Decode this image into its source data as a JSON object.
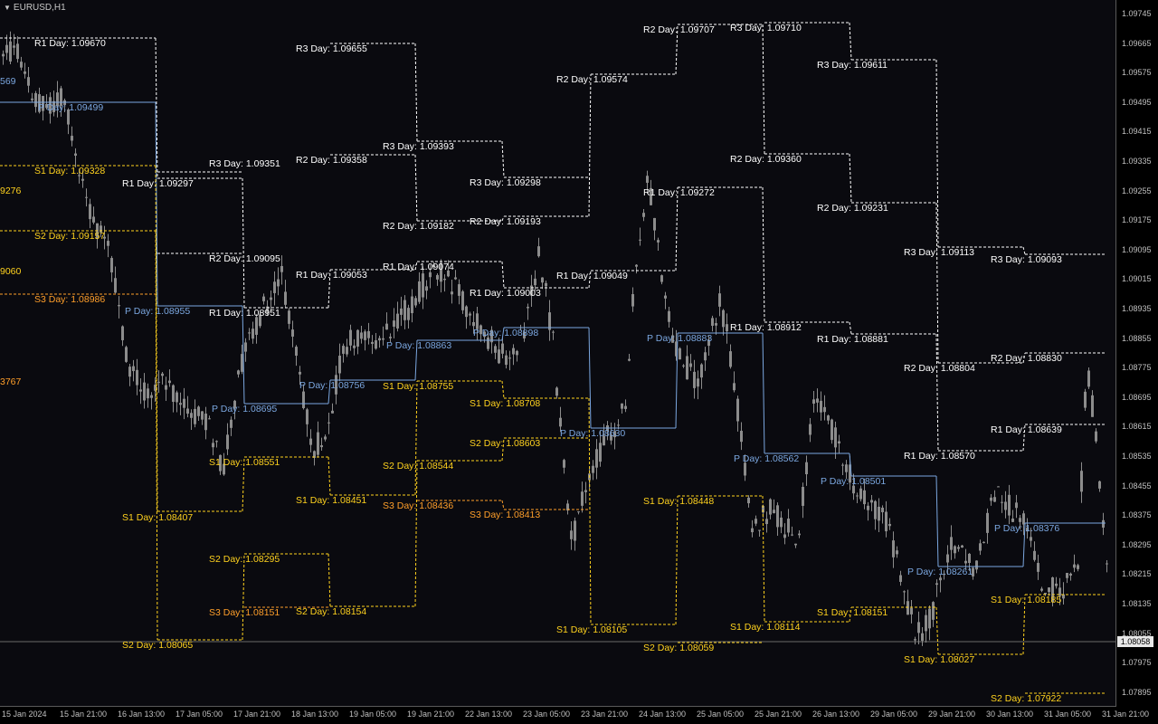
{
  "symbol": "EURUSD,H1",
  "current_price": "1.08058",
  "colors": {
    "background": "#0a0a0f",
    "candles": "#8c8c8c",
    "pivot": "#7ba7e0",
    "resistance": "#ffffff",
    "s1_s2": "#ffd21e",
    "s3": "#ff9f2a"
  },
  "price_axis": [
    "1.09745",
    "1.09665",
    "1.09575",
    "1.09495",
    "1.09415",
    "1.09335",
    "1.09255",
    "1.09175",
    "1.09095",
    "1.09015",
    "1.08935",
    "1.08855",
    "1.08775",
    "1.08695",
    "1.08615",
    "1.08535",
    "1.08455",
    "1.08375",
    "1.08295",
    "1.08215",
    "1.08135",
    "1.08055",
    "1.07975",
    "1.07895"
  ],
  "time_axis": [
    "15 Jan 2024",
    "15 Jan 21:00",
    "16 Jan 13:00",
    "17 Jan 05:00",
    "17 Jan 21:00",
    "18 Jan 13:00",
    "19 Jan 05:00",
    "19 Jan 21:00",
    "22 Jan 13:00",
    "23 Jan 05:00",
    "23 Jan 21:00",
    "24 Jan 13:00",
    "25 Jan 05:00",
    "25 Jan 21:00",
    "26 Jan 13:00",
    "29 Jan 05:00",
    "29 Jan 21:00",
    "30 Jan 13:00",
    "31 Jan 05:00",
    "31 Jan 21:00"
  ],
  "chart_data": {
    "type": "candlestick",
    "symbol": "EURUSD",
    "timeframe": "H1",
    "ylim": [
      1.0789,
      1.0977
    ],
    "current_price": 1.08058,
    "pivot_days": [
      {
        "P": "1.09499",
        "R1": "1.09670",
        "S1": "1.09328",
        "S2": "1.09157",
        "S3": "1.08986"
      },
      {
        "P": "1.08955",
        "R1": "1.09297",
        "R3": "1.09351",
        "R2": "1.09095",
        "S1": "1.08407",
        "S2": "1.08065"
      },
      {
        "P": "1.08695",
        "R1": "1.08951",
        "S1": "1.08551",
        "S2": "1.08295",
        "S3": "1.08151"
      },
      {
        "P": "1.08756",
        "R1": "1.09053",
        "R2": "1.09358",
        "R3": "1.09655",
        "S1": "1.08451",
        "S2": "1.08154"
      },
      {
        "P": "1.08863",
        "R1": "1.09074",
        "R2": "1.09182",
        "R3": "1.09393",
        "S1": "1.08755",
        "S2": "1.08544",
        "S3": "1.08436"
      },
      {
        "P": "1.08898",
        "R1": "1.09003",
        "R2": "1.09193",
        "R3": "1.09298",
        "S1": "1.08708",
        "S2": "1.08603",
        "S3": "1.08413"
      },
      {
        "P": "1.08630",
        "R1": "1.09049",
        "R2": "1.09574",
        "S1": "1.08105"
      },
      {
        "P": "1.08883",
        "R1": "1.09272",
        "R2": "1.09707",
        "S1": "1.08448",
        "S2": "1.08059"
      },
      {
        "P": "1.08562",
        "R1": "1.08912",
        "R2": "1.09360",
        "R3": "1.09710",
        "S1": "1.08114"
      },
      {
        "P": "1.08501",
        "R1": "1.08881",
        "R2": "1.09231",
        "R3": "1.09611",
        "S1": "1.08151"
      },
      {
        "P": "1.08261",
        "R1": "1.08570",
        "R2": "1.08804",
        "R3": "1.09113",
        "S1": "1.08027"
      },
      {
        "P": "1.08376",
        "R1": "1.08639",
        "R2": "1.08830",
        "R3": "1.09093",
        "S1": "1.08185",
        "S2": "1.07922"
      }
    ],
    "left_edge_labels": [
      "569",
      "9276",
      "9060",
      "3767"
    ]
  },
  "labels": [
    {
      "t": "R1 Day:",
      "v": "1.09670",
      "c": "r",
      "x": 38,
      "y": 51,
      "lx": 0,
      "lxe": 172,
      "ly": 42
    },
    {
      "t": "P Day:",
      "v": "1.09499",
      "c": "p",
      "x": 42,
      "y": 122,
      "lx": 0,
      "lxe": 172,
      "ly": 113
    },
    {
      "t": "S1 Day:",
      "v": "1.09328",
      "c": "s",
      "x": 38,
      "y": 192,
      "lx": 0,
      "lxe": 172,
      "ly": 183
    },
    {
      "t": "S2 Day:",
      "v": "1.09157",
      "c": "s",
      "x": 38,
      "y": 264,
      "lx": 0,
      "lxe": 172,
      "ly": 255
    },
    {
      "t": "S3 Day:",
      "v": "1.08986",
      "c": "s3",
      "x": 38,
      "y": 334,
      "lx": 0,
      "lxe": 172,
      "ly": 325
    },
    {
      "t": "R3 Day:",
      "v": "1.09351",
      "c": "r",
      "x": 231,
      "y": 184,
      "lx": 174,
      "lxe": 268,
      "ly": 190
    },
    {
      "t": "R1 Day:",
      "v": "1.09297",
      "c": "r",
      "x": 135,
      "y": 206,
      "lx": 174,
      "lxe": 268,
      "ly": 197
    },
    {
      "t": "R2 Day:",
      "v": "1.09095",
      "c": "r",
      "x": 231,
      "y": 289,
      "lx": 174,
      "lxe": 268,
      "ly": 280
    },
    {
      "t": "P Day:",
      "v": "1.08955",
      "c": "p",
      "x": 138,
      "y": 347,
      "lx": 174,
      "lxe": 268,
      "ly": 338
    },
    {
      "t": "S1 Day:",
      "v": "1.08407",
      "c": "s",
      "x": 135,
      "y": 575,
      "lx": 174,
      "lxe": 268,
      "ly": 565
    },
    {
      "t": "S2 Day:",
      "v": "1.08065",
      "c": "s",
      "x": 135,
      "y": 716,
      "lx": 174,
      "lxe": 268,
      "ly": 707
    },
    {
      "t": "R1 Day:",
      "v": "1.08951",
      "c": "r",
      "x": 231,
      "y": 349,
      "lx": 270,
      "lxe": 363,
      "ly": 340
    },
    {
      "t": "P Day:",
      "v": "1.08695",
      "c": "p",
      "x": 234,
      "y": 455,
      "lx": 270,
      "lxe": 363,
      "ly": 446
    },
    {
      "t": "S1 Day:",
      "v": "1.08551",
      "c": "s",
      "x": 231,
      "y": 514,
      "lx": 270,
      "lxe": 363,
      "ly": 505
    },
    {
      "t": "S2 Day:",
      "v": "1.08295",
      "c": "s",
      "x": 231,
      "y": 621,
      "lx": 270,
      "lxe": 363,
      "ly": 612
    },
    {
      "t": "S3 Day:",
      "v": "1.08151",
      "c": "s3",
      "x": 231,
      "y": 680,
      "lx": 270,
      "lxe": 363,
      "ly": 671
    },
    {
      "t": "R3 Day:",
      "v": "1.09655",
      "c": "r",
      "x": 327,
      "y": 57,
      "lx": 365,
      "lxe": 459,
      "ly": 48
    },
    {
      "t": "R2 Day:",
      "v": "1.09358",
      "c": "r",
      "x": 327,
      "y": 180,
      "lx": 365,
      "lxe": 459,
      "ly": 171
    },
    {
      "t": "R1 Day:",
      "v": "1.09053",
      "c": "r",
      "x": 327,
      "y": 307,
      "lx": 365,
      "lxe": 459,
      "ly": 298
    },
    {
      "t": "P Day:",
      "v": "1.08756",
      "c": "p",
      "x": 331,
      "y": 429,
      "lx": 365,
      "lxe": 459,
      "ly": 420
    },
    {
      "t": "S1 Day:",
      "v": "1.08451",
      "c": "s",
      "x": 327,
      "y": 556,
      "lx": 365,
      "lxe": 459,
      "ly": 547
    },
    {
      "t": "S2 Day:",
      "v": "1.08154",
      "c": "s",
      "x": 327,
      "y": 679,
      "lx": 365,
      "lxe": 459,
      "ly": 670
    },
    {
      "t": "R3 Day:",
      "v": "1.09393",
      "c": "r",
      "x": 423,
      "y": 165,
      "lx": 461,
      "lxe": 555,
      "ly": 156
    },
    {
      "t": "R2 Day:",
      "v": "1.09182",
      "c": "r",
      "x": 423,
      "y": 253,
      "lx": 461,
      "lxe": 555,
      "ly": 244
    },
    {
      "t": "R1 Day:",
      "v": "1.09074",
      "c": "r",
      "x": 423,
      "y": 298,
      "lx": 461,
      "lxe": 555,
      "ly": 289
    },
    {
      "t": "P Day:",
      "v": "1.08863",
      "c": "p",
      "x": 427,
      "y": 385,
      "lx": 461,
      "lxe": 555,
      "ly": 376
    },
    {
      "t": "S1 Day:",
      "v": "1.08755",
      "c": "s",
      "x": 423,
      "y": 430,
      "lx": 461,
      "lxe": 555,
      "ly": 421
    },
    {
      "t": "S2 Day:",
      "v": "1.08544",
      "c": "s",
      "x": 423,
      "y": 518,
      "lx": 461,
      "lxe": 555,
      "ly": 509
    },
    {
      "t": "S3 Day:",
      "v": "1.08436",
      "c": "s3",
      "x": 423,
      "y": 562,
      "lx": 461,
      "lxe": 555,
      "ly": 553
    },
    {
      "t": "R3 Day:",
      "v": "1.09298",
      "c": "r",
      "x": 519,
      "y": 205,
      "lx": 557,
      "lxe": 651,
      "ly": 196
    },
    {
      "t": "R2 Day:",
      "v": "1.09193",
      "c": "r",
      "x": 519,
      "y": 248,
      "lx": 557,
      "lxe": 651,
      "ly": 239
    },
    {
      "t": "R1 Day:",
      "v": "1.09003",
      "c": "r",
      "x": 519,
      "y": 327,
      "lx": 557,
      "lxe": 651,
      "ly": 318
    },
    {
      "t": "P Day:",
      "v": "1.08898",
      "c": "p",
      "x": 523,
      "y": 371,
      "lx": 557,
      "lxe": 651,
      "ly": 362
    },
    {
      "t": "S1 Day:",
      "v": "1.08708",
      "c": "s",
      "x": 519,
      "y": 449,
      "lx": 557,
      "lxe": 651,
      "ly": 440
    },
    {
      "t": "S2 Day:",
      "v": "1.08603",
      "c": "s",
      "x": 519,
      "y": 493,
      "lx": 557,
      "lxe": 651,
      "ly": 484
    },
    {
      "t": "S3 Day:",
      "v": "1.08413",
      "c": "s3",
      "x": 519,
      "y": 572,
      "lx": 557,
      "lxe": 651,
      "ly": 563
    },
    {
      "t": "R2 Day:",
      "v": "1.09574",
      "c": "r",
      "x": 615,
      "y": 91,
      "lx": 653,
      "lxe": 747,
      "ly": 82
    },
    {
      "t": "R1 Day:",
      "v": "1.09049",
      "c": "r",
      "x": 615,
      "y": 308,
      "lx": 653,
      "lxe": 747,
      "ly": 299
    },
    {
      "t": "P Day:",
      "v": "1.08630",
      "c": "p",
      "x": 619,
      "y": 482,
      "lx": 653,
      "lxe": 747,
      "ly": 473
    },
    {
      "t": "S1 Day:",
      "v": "1.08105",
      "c": "s",
      "x": 615,
      "y": 699,
      "lx": 653,
      "lxe": 747,
      "ly": 690
    },
    {
      "t": "R2 Day:",
      "v": "1.09707",
      "c": "r",
      "x": 711,
      "y": 36,
      "lx": 749,
      "lxe": 843,
      "ly": 27
    },
    {
      "t": "R1 Day:",
      "v": "1.09272",
      "c": "r",
      "x": 711,
      "y": 216,
      "lx": 749,
      "lxe": 843,
      "ly": 207
    },
    {
      "t": "P Day:",
      "v": "1.08883",
      "c": "p",
      "x": 715,
      "y": 377,
      "lx": 749,
      "lxe": 843,
      "ly": 368
    },
    {
      "t": "S1 Day:",
      "v": "1.08448",
      "c": "s",
      "x": 711,
      "y": 557,
      "lx": 749,
      "lxe": 843,
      "ly": 548
    },
    {
      "t": "S2 Day:",
      "v": "1.08059",
      "c": "s",
      "x": 711,
      "y": 719,
      "lx": 749,
      "lxe": 843,
      "ly": 710
    },
    {
      "t": "R3 Day:",
      "v": "1.09710",
      "c": "r",
      "x": 807,
      "y": 34,
      "lx": 845,
      "lxe": 939,
      "ly": 25
    },
    {
      "t": "R2 Day:",
      "v": "1.09360",
      "c": "r",
      "x": 807,
      "y": 179,
      "lx": 845,
      "lxe": 939,
      "ly": 170
    },
    {
      "t": "R1 Day:",
      "v": "1.08912",
      "c": "r",
      "x": 807,
      "y": 365,
      "lx": 845,
      "lxe": 939,
      "ly": 356
    },
    {
      "t": "P Day:",
      "v": "1.08562",
      "c": "p",
      "x": 811,
      "y": 510,
      "lx": 845,
      "lxe": 939,
      "ly": 501
    },
    {
      "t": "S1 Day:",
      "v": "1.08114",
      "c": "s",
      "x": 807,
      "y": 696,
      "lx": 845,
      "lxe": 939,
      "ly": 687
    },
    {
      "t": "R3 Day:",
      "v": "1.09611",
      "c": "r",
      "x": 903,
      "y": 75,
      "lx": 941,
      "lxe": 1035,
      "ly": 66
    },
    {
      "t": "R2 Day:",
      "v": "1.09231",
      "c": "r",
      "x": 903,
      "y": 233,
      "lx": 941,
      "lxe": 1035,
      "ly": 224
    },
    {
      "t": "R1 Day:",
      "v": "1.08881",
      "c": "r",
      "x": 903,
      "y": 378,
      "lx": 941,
      "lxe": 1035,
      "ly": 369
    },
    {
      "t": "P Day:",
      "v": "1.08501",
      "c": "p",
      "x": 907,
      "y": 535,
      "lx": 941,
      "lxe": 1035,
      "ly": 526
    },
    {
      "t": "S1 Day:",
      "v": "1.08151",
      "c": "s",
      "x": 903,
      "y": 680,
      "lx": 941,
      "lxe": 1035,
      "ly": 671
    },
    {
      "t": "R3 Day:",
      "v": "1.09113",
      "c": "r",
      "x": 999,
      "y": 282,
      "lx": 1037,
      "lxe": 1131,
      "ly": 273
    },
    {
      "t": "R2 Day:",
      "v": "1.08804",
      "c": "r",
      "x": 999,
      "y": 410,
      "lx": 1037,
      "lxe": 1131,
      "ly": 401
    },
    {
      "t": "R1 Day:",
      "v": "1.08570",
      "c": "r",
      "x": 999,
      "y": 507,
      "lx": 1037,
      "lxe": 1131,
      "ly": 498
    },
    {
      "t": "P Day:",
      "v": "1.08261",
      "c": "p",
      "x": 1003,
      "y": 635,
      "lx": 1037,
      "lxe": 1131,
      "ly": 626
    },
    {
      "t": "S1 Day:",
      "v": "1.08027",
      "c": "s",
      "x": 999,
      "y": 732,
      "lx": 1037,
      "lxe": 1131,
      "ly": 723
    },
    {
      "t": "R3 Day:",
      "v": "1.09093",
      "c": "r",
      "x": 1095,
      "y": 290,
      "lx": 1133,
      "lxe": 1222,
      "ly": 281
    },
    {
      "t": "R2 Day:",
      "v": "1.08830",
      "c": "r",
      "x": 1095,
      "y": 399,
      "lx": 1133,
      "lxe": 1222,
      "ly": 390
    },
    {
      "t": "R1 Day:",
      "v": "1.08639",
      "c": "r",
      "x": 1095,
      "y": 478,
      "lx": 1133,
      "lxe": 1222,
      "ly": 469
    },
    {
      "t": "P Day:",
      "v": "1.08376",
      "c": "p",
      "x": 1099,
      "y": 587,
      "lx": 1133,
      "lxe": 1222,
      "ly": 578
    },
    {
      "t": "S1 Day:",
      "v": "1.08185",
      "c": "s",
      "x": 1095,
      "y": 666,
      "lx": 1133,
      "lxe": 1222,
      "ly": 657
    },
    {
      "t": "S2 Day:",
      "v": "1.07922",
      "c": "s",
      "x": 1095,
      "y": 775,
      "lx": 1133,
      "lxe": 1222,
      "ly": 766
    }
  ],
  "edge_labels": [
    {
      "v": "569",
      "c": "p",
      "y": 93
    },
    {
      "v": "9276",
      "c": "s",
      "y": 214
    },
    {
      "v": "9060",
      "c": "s",
      "y": 303
    },
    {
      "v": "3767",
      "c": "s3",
      "y": 425
    }
  ]
}
